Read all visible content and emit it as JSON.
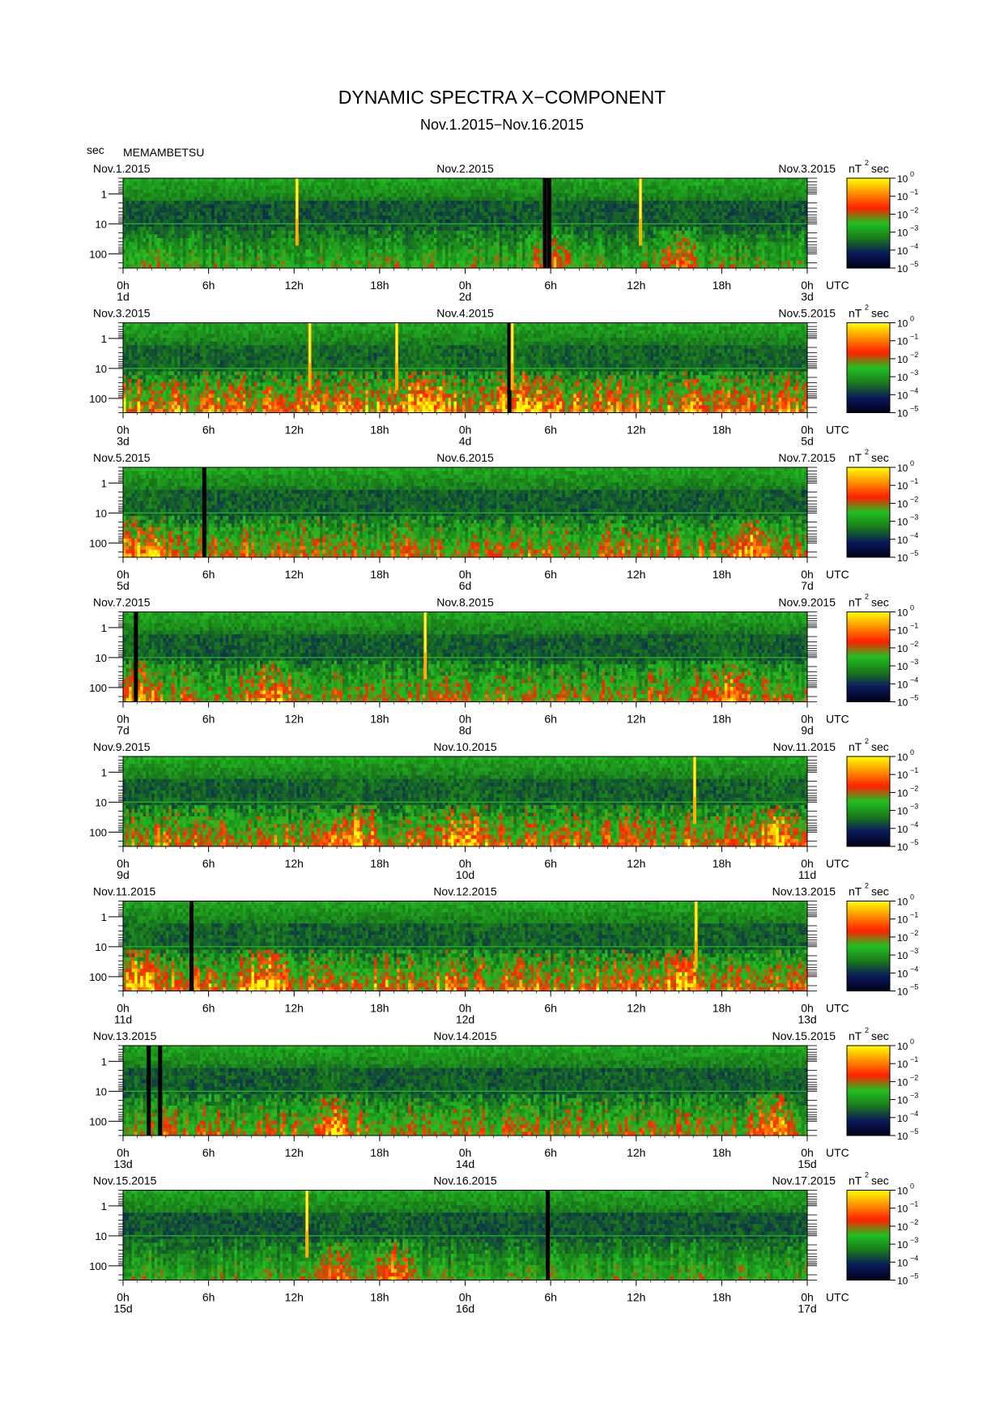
{
  "title": "DYNAMIC SPECTRA X−COMPONENT",
  "subtitle": "Nov.1.2015−Nov.16.2015",
  "station": "MEMAMBETSU",
  "y_unit_label": "sec",
  "colorbar_unit": "nT",
  "colorbar_unit_sup": "2",
  "colorbar_unit_tail": "sec",
  "utc_label": "UTC",
  "chart_data": {
    "type": "heatmap",
    "description_axes": {
      "y_axis": {
        "label": "sec",
        "scale": "log",
        "range": [
          0.3,
          300
        ],
        "ticks": [
          "1",
          "10",
          "100"
        ],
        "reversed": true
      },
      "x_axis": {
        "label": "UTC",
        "range_hours": [
          0,
          48
        ],
        "ticks": [
          "0h",
          "6h",
          "12h",
          "18h",
          "0h",
          "6h",
          "12h",
          "18h",
          "0h"
        ]
      },
      "colorbar": {
        "scale": "log",
        "range": [
          1e-05,
          1
        ],
        "ticks": [
          {
            "base": "10",
            "exp": "0"
          },
          {
            "base": "10",
            "exp": "−1"
          },
          {
            "base": "10",
            "exp": "−2"
          },
          {
            "base": "10",
            "exp": "−3"
          },
          {
            "base": "10",
            "exp": "−4"
          },
          {
            "base": "10",
            "exp": "−5"
          }
        ],
        "colors": [
          "#000018",
          "#0a1a5a",
          "#1a7a1a",
          "#22c022",
          "#ff2000",
          "#ff9000",
          "#ffff00"
        ]
      }
    },
    "panels": [
      {
        "start_date": "Nov.1.2015",
        "mid_date": "Nov.2.2015",
        "end_date": "Nov.3.2015",
        "day_labels": [
          "1d",
          "2d",
          "3d"
        ],
        "activity": 0.35,
        "spikes_h": [
          12.2,
          36.3
        ],
        "gaps_h": [
          29.6,
          29.9
        ],
        "bursts_h": [
          30,
          39.2
        ]
      },
      {
        "start_date": "Nov.3.2015",
        "mid_date": "Nov.4.2015",
        "end_date": "Nov.5.2015",
        "day_labels": [
          "3d",
          "4d",
          "5d"
        ],
        "activity": 0.7,
        "spikes_h": [
          13.1,
          19.2,
          27.3
        ],
        "gaps_h": [
          27.1
        ],
        "bursts_h": [
          21,
          28
        ]
      },
      {
        "start_date": "Nov.5.2015",
        "mid_date": "Nov.6.2015",
        "end_date": "Nov.7.2015",
        "day_labels": [
          "5d",
          "6d",
          "7d"
        ],
        "activity": 0.55,
        "spikes_h": [],
        "gaps_h": [
          5.7
        ],
        "bursts_h": [
          1,
          44
        ]
      },
      {
        "start_date": "Nov.7.2015",
        "mid_date": "Nov.8.2015",
        "end_date": "Nov.9.2015",
        "day_labels": [
          "7d",
          "8d",
          "9d"
        ],
        "activity": 0.5,
        "spikes_h": [
          21.2
        ],
        "gaps_h": [
          0.9
        ],
        "bursts_h": [
          1,
          10.5,
          42.5
        ]
      },
      {
        "start_date": "Nov.9.2015",
        "mid_date": "Nov.10.2015",
        "end_date": "Nov.11.2015",
        "day_labels": [
          "9d",
          "10d",
          "11d"
        ],
        "activity": 0.6,
        "spikes_h": [
          40.1
        ],
        "gaps_h": [],
        "bursts_h": [
          16,
          24,
          46
        ]
      },
      {
        "start_date": "Nov.11.2015",
        "mid_date": "Nov.12.2015",
        "end_date": "Nov.13.2015",
        "day_labels": [
          "11d",
          "12d",
          "13d"
        ],
        "activity": 0.65,
        "spikes_h": [
          40.2
        ],
        "gaps_h": [
          4.8
        ],
        "bursts_h": [
          1,
          10,
          39
        ]
      },
      {
        "start_date": "Nov.13.2015",
        "mid_date": "Nov.14.2015",
        "end_date": "Nov.15.2015",
        "day_labels": [
          "13d",
          "14d",
          "15d"
        ],
        "activity": 0.5,
        "spikes_h": [],
        "gaps_h": [
          1.8,
          2.6
        ],
        "bursts_h": [
          15,
          45.5
        ]
      },
      {
        "start_date": "Nov.15.2015",
        "mid_date": "Nov.16.2015",
        "end_date": "Nov.17.2015",
        "day_labels": [
          "15d",
          "16d",
          "17d"
        ],
        "activity": 0.35,
        "spikes_h": [
          12.9
        ],
        "gaps_h": [
          29.8
        ],
        "bursts_h": [
          15,
          19
        ]
      }
    ]
  }
}
